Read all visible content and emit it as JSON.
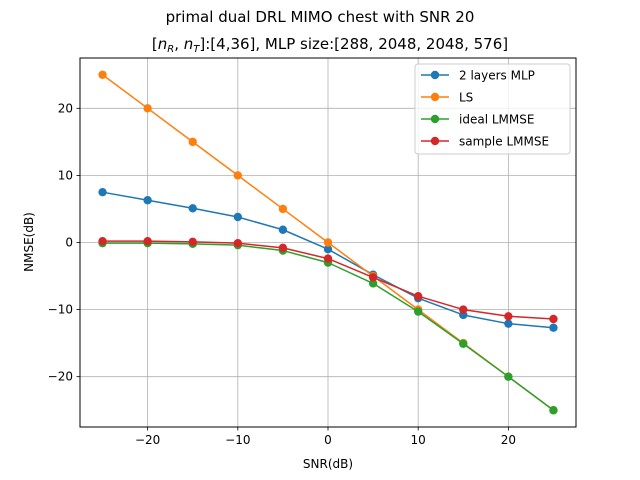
{
  "chart_data": {
    "type": "line",
    "title": "primal dual DRL MIMO chest with SNR 20",
    "subtitle_parts": {
      "open_bracket": "[",
      "n": "n",
      "sub_r": "R",
      "comma": ", ",
      "sub_t": "T",
      "rest": "]:[4,36], MLP size:[288, 2048, 2048, 576]"
    },
    "xlabel": "SNR(dB)",
    "ylabel": "NMSE(dB)",
    "x": [
      -25,
      -20,
      -15,
      -10,
      -5,
      0,
      5,
      10,
      15,
      20,
      25
    ],
    "xlim": [
      -27.5,
      27.5
    ],
    "ylim": [
      -27.5,
      27.5
    ],
    "xticks": [
      -20,
      -10,
      0,
      10,
      20
    ],
    "yticks": [
      -20,
      -10,
      0,
      10,
      20
    ],
    "xtick_labels": [
      "−20",
      "−10",
      "0",
      "10",
      "20"
    ],
    "ytick_labels": [
      "−20",
      "−10",
      "0",
      "10",
      "20"
    ],
    "grid": true,
    "legend_position": "top-right",
    "series": [
      {
        "name": "2 layers MLP",
        "color": "#1f77b4",
        "values": [
          7.5,
          6.3,
          5.1,
          3.8,
          1.9,
          -1.0,
          -4.8,
          -8.3,
          -10.8,
          -12.1,
          -12.7
        ]
      },
      {
        "name": "LS",
        "color": "#ff7f0e",
        "values": [
          25.0,
          20.0,
          15.0,
          10.0,
          5.0,
          0.0,
          -5.0,
          -10.0,
          -15.0,
          -20.0,
          -25.0
        ]
      },
      {
        "name": "ideal LMMSE",
        "color": "#2ca02c",
        "values": [
          -0.1,
          -0.1,
          -0.2,
          -0.4,
          -1.2,
          -3.0,
          -6.1,
          -10.3,
          -15.1,
          -20.0,
          -25.0
        ]
      },
      {
        "name": "sample LMMSE",
        "color": "#d62728",
        "values": [
          0.2,
          0.2,
          0.1,
          -0.1,
          -0.8,
          -2.4,
          -5.2,
          -8.0,
          -10.0,
          -11.0,
          -11.4
        ]
      }
    ]
  }
}
